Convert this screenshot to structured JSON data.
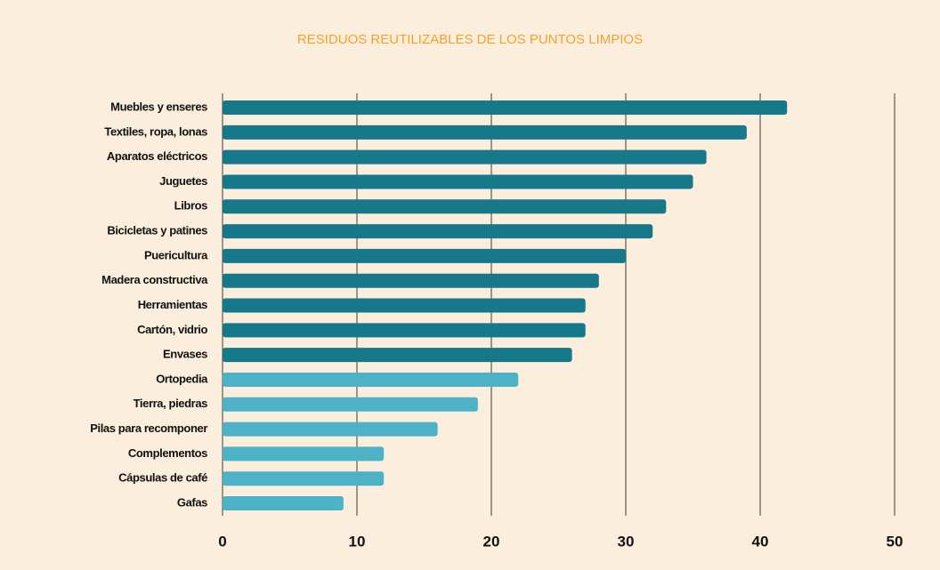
{
  "chart_data": {
    "type": "bar",
    "orientation": "horizontal",
    "title": "RESIDUOS REUTILIZABLES DE LOS PUNTOS LIMPIOS",
    "categories": [
      "Muebles y enseres",
      "Textiles, ropa, lonas",
      "Aparatos eléctricos",
      "Juguetes",
      "Libros",
      "Bicicletas y patines",
      "Puericultura",
      "Madera constructiva",
      "Herramientas",
      "Cartón, vidrio",
      "Envases",
      "Ortopedia",
      "Tierra, piedras",
      "Pilas para recomponer",
      "Complementos",
      "Cápsulas de café",
      "Gafas"
    ],
    "values": [
      42,
      39,
      36,
      35,
      33,
      32,
      30,
      28,
      27,
      27,
      26,
      22,
      19,
      16,
      12,
      12,
      9
    ],
    "colors": [
      "#17788a",
      "#17788a",
      "#17788a",
      "#17788a",
      "#17788a",
      "#17788a",
      "#17788a",
      "#17788a",
      "#17788a",
      "#17788a",
      "#17788a",
      "#4db2c6",
      "#4db2c6",
      "#4db2c6",
      "#4db2c6",
      "#4db2c6",
      "#4db2c6"
    ],
    "xlim": [
      0,
      50
    ],
    "xticks": [
      0,
      10,
      20,
      30,
      40,
      50
    ],
    "grid": true
  }
}
